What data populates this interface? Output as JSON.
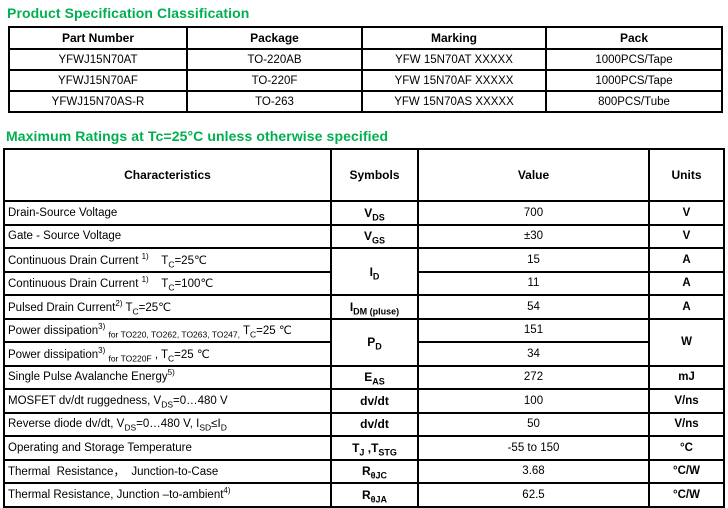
{
  "colors": {
    "heading_green": "#00B050",
    "table_border": "#000000",
    "background": "#ffffff"
  },
  "section1": {
    "title": "Product Specification Classification",
    "table": {
      "headers": [
        "Part Number",
        "Package",
        "Marking",
        "Pack"
      ],
      "rows": [
        [
          "YFWJ15N70AT",
          "TO-220AB",
          "YFW 15N70AT XXXXX",
          "1000PCS/Tape"
        ],
        [
          "YFWJ15N70AF",
          "TO-220F",
          "YFW 15N70AF XXXXX",
          "1000PCS/Tape"
        ],
        [
          "YFWJ15N70AS-R",
          "TO-263",
          "YFW 15N70AS XXXXX",
          "800PCS/Tube"
        ]
      ]
    }
  },
  "section2": {
    "title": "Maximum Ratings at Tc=25°C unless otherwise specified",
    "table": {
      "headers": [
        "Characteristics",
        "Symbols",
        "Value",
        "Units"
      ],
      "rows": [
        {
          "characteristic": "Drain-Source Voltage",
          "symbol": "V_{DS}",
          "value": "700",
          "unit": "V"
        },
        {
          "characteristic": "Gate - Source Voltage",
          "symbol": "V_{GS}",
          "value": "±30",
          "unit": "V"
        },
        {
          "characteristic": "Continuous Drain Current ^{1)}    T_{C}=25℃",
          "symbol": "I_{D}",
          "symbol_rowspan": 2,
          "value": "15",
          "unit": "A"
        },
        {
          "characteristic": "Continuous Drain Current ^{1)}    T_{C}=100℃",
          "value": "11",
          "unit": "A"
        },
        {
          "characteristic": "Pulsed Drain Current^{2)} T_{C}=25℃",
          "symbol": "I_{DM (pluse)}",
          "value": "54",
          "unit": "A"
        },
        {
          "characteristic": "Power dissipation^{3)} _{for TO220, TO262, TO263, TO247,} T_{C}=25 ℃",
          "symbol": "P_{D}",
          "symbol_rowspan": 2,
          "value": "151",
          "unit": "W",
          "unit_rowspan": 2
        },
        {
          "characteristic": "Power dissipation^{3)} _{for TO220F} , T_{C}=25 ℃",
          "value": "34"
        },
        {
          "characteristic": "Single Pulse Avalanche Energy^{5)}",
          "symbol": "E_{AS}",
          "value": "272",
          "unit": "mJ"
        },
        {
          "characteristic": "MOSFET dv/dt ruggedness, V_{DS}=0…480 V",
          "symbol": "dv/dt",
          "value": "100",
          "unit": "V/ns"
        },
        {
          "characteristic": "Reverse diode dv/dt, V_{DS}=0…480 V, I_{SD}≤I_{D}",
          "symbol": "dv/dt",
          "value": "50",
          "unit": "V/ns"
        },
        {
          "characteristic": "Operating and Storage Temperature",
          "symbol": "T_{J} ,T_{STG}",
          "value": "-55 to 150",
          "unit": "°C"
        },
        {
          "characteristic": "Thermal  Resistance，  Junction-to-Case",
          "symbol": "R_{θJC}",
          "value": "3.68",
          "unit": "°C/W"
        },
        {
          "characteristic": "Thermal Resistance, Junction –to-ambient^{4)}",
          "symbol": "R_{θJA}",
          "value": "62.5",
          "unit": "°C/W"
        }
      ]
    }
  }
}
